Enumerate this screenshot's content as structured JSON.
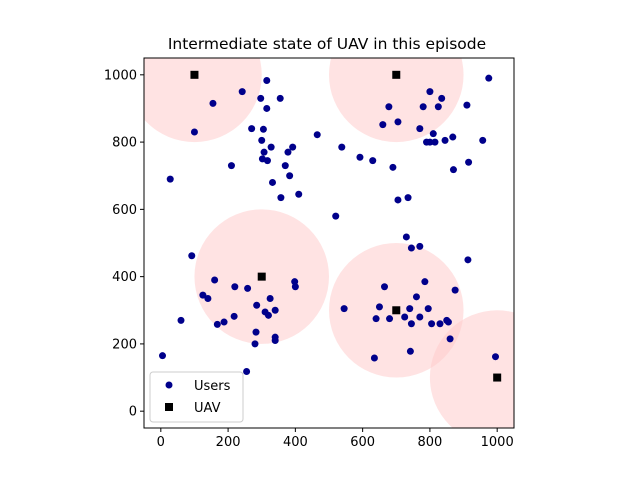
{
  "chart_data": {
    "type": "scatter",
    "title": "Intermediate state of UAV in this episode",
    "xlabel": "",
    "ylabel": "",
    "xlim": [
      -50,
      1050
    ],
    "ylim": [
      -50,
      1050
    ],
    "xticks": [
      "0",
      "200",
      "400",
      "600",
      "800",
      "1000"
    ],
    "yticks": [
      "0",
      "200",
      "400",
      "600",
      "800",
      "1000"
    ],
    "grid": false,
    "legend_position": "lower-left",
    "coverage_radius": 200,
    "coverage_color": "#ffcccc",
    "series": [
      {
        "name": "Users",
        "marker": "circle",
        "color": "#00008b",
        "points": [
          [
            5,
            165
          ],
          [
            28,
            690
          ],
          [
            60,
            270
          ],
          [
            92,
            462
          ],
          [
            100,
            830
          ],
          [
            125,
            345
          ],
          [
            140,
            335
          ],
          [
            155,
            915
          ],
          [
            160,
            390
          ],
          [
            168,
            258
          ],
          [
            188,
            265
          ],
          [
            210,
            730
          ],
          [
            218,
            282
          ],
          [
            220,
            370
          ],
          [
            242,
            950
          ],
          [
            255,
            118
          ],
          [
            258,
            365
          ],
          [
            270,
            840
          ],
          [
            280,
            200
          ],
          [
            283,
            235
          ],
          [
            285,
            315
          ],
          [
            297,
            930
          ],
          [
            300,
            805
          ],
          [
            302,
            750
          ],
          [
            305,
            838
          ],
          [
            307,
            770
          ],
          [
            310,
            295
          ],
          [
            315,
            983
          ],
          [
            315,
            900
          ],
          [
            317,
            745
          ],
          [
            320,
            285
          ],
          [
            325,
            335
          ],
          [
            328,
            785
          ],
          [
            332,
            680
          ],
          [
            340,
            210
          ],
          [
            340,
            220
          ],
          [
            340,
            300
          ],
          [
            355,
            930
          ],
          [
            357,
            635
          ],
          [
            370,
            730
          ],
          [
            378,
            770
          ],
          [
            383,
            700
          ],
          [
            392,
            785
          ],
          [
            398,
            385
          ],
          [
            400,
            370
          ],
          [
            410,
            645
          ],
          [
            465,
            822
          ],
          [
            520,
            580
          ],
          [
            538,
            785
          ],
          [
            545,
            305
          ],
          [
            592,
            755
          ],
          [
            630,
            745
          ],
          [
            635,
            158
          ],
          [
            640,
            275
          ],
          [
            650,
            310
          ],
          [
            660,
            852
          ],
          [
            665,
            370
          ],
          [
            678,
            905
          ],
          [
            680,
            275
          ],
          [
            690,
            725
          ],
          [
            705,
            860
          ],
          [
            705,
            628
          ],
          [
            725,
            280
          ],
          [
            730,
            518
          ],
          [
            735,
            635
          ],
          [
            740,
            305
          ],
          [
            742,
            178
          ],
          [
            745,
            485
          ],
          [
            745,
            260
          ],
          [
            760,
            340
          ],
          [
            770,
            490
          ],
          [
            770,
            280
          ],
          [
            770,
            840
          ],
          [
            780,
            905
          ],
          [
            785,
            385
          ],
          [
            790,
            800
          ],
          [
            795,
            305
          ],
          [
            800,
            950
          ],
          [
            800,
            800
          ],
          [
            805,
            260
          ],
          [
            810,
            825
          ],
          [
            815,
            800
          ],
          [
            825,
            905
          ],
          [
            830,
            260
          ],
          [
            835,
            930
          ],
          [
            845,
            805
          ],
          [
            850,
            270
          ],
          [
            855,
            265
          ],
          [
            860,
            215
          ],
          [
            868,
            815
          ],
          [
            870,
            718
          ],
          [
            875,
            360
          ],
          [
            910,
            910
          ],
          [
            913,
            450
          ],
          [
            915,
            740
          ],
          [
            957,
            805
          ],
          [
            975,
            990
          ],
          [
            995,
            162
          ]
        ]
      },
      {
        "name": "UAV",
        "marker": "square",
        "color": "#000000",
        "points": [
          [
            100,
            1000
          ],
          [
            700,
            1000
          ],
          [
            300,
            400
          ],
          [
            700,
            300
          ],
          [
            1000,
            100
          ]
        ]
      }
    ]
  }
}
